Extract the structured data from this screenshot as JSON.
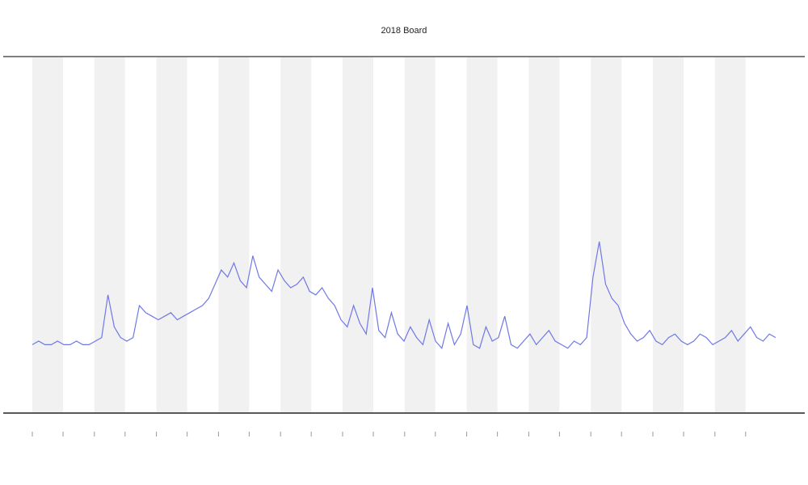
{
  "chart_data": {
    "type": "line",
    "title": "2018 Board",
    "color": "#6f78e6",
    "values": [
      19,
      20,
      19,
      19,
      20,
      19,
      19,
      20,
      19,
      19,
      20,
      21,
      33,
      24,
      21,
      20,
      21,
      30,
      28,
      27,
      26,
      27,
      28,
      26,
      27,
      28,
      29,
      30,
      32,
      36,
      40,
      38,
      42,
      37,
      35,
      44,
      38,
      36,
      34,
      40,
      37,
      35,
      36,
      38,
      34,
      33,
      35,
      32,
      30,
      26,
      24,
      30,
      25,
      22,
      35,
      23,
      21,
      28,
      22,
      20,
      24,
      21,
      19,
      26,
      20,
      18,
      25,
      19,
      22,
      30,
      19,
      18,
      24,
      20,
      21,
      27,
      19,
      18,
      20,
      22,
      19,
      21,
      23,
      20,
      19,
      18,
      20,
      19,
      21,
      38,
      48,
      36,
      32,
      30,
      25,
      22,
      20,
      21,
      23,
      20,
      19,
      21,
      22,
      20,
      19,
      20,
      22,
      21,
      19,
      20,
      21,
      23,
      20,
      22,
      24,
      21,
      20,
      22,
      21
    ],
    "ylim": [
      0,
      100
    ]
  }
}
